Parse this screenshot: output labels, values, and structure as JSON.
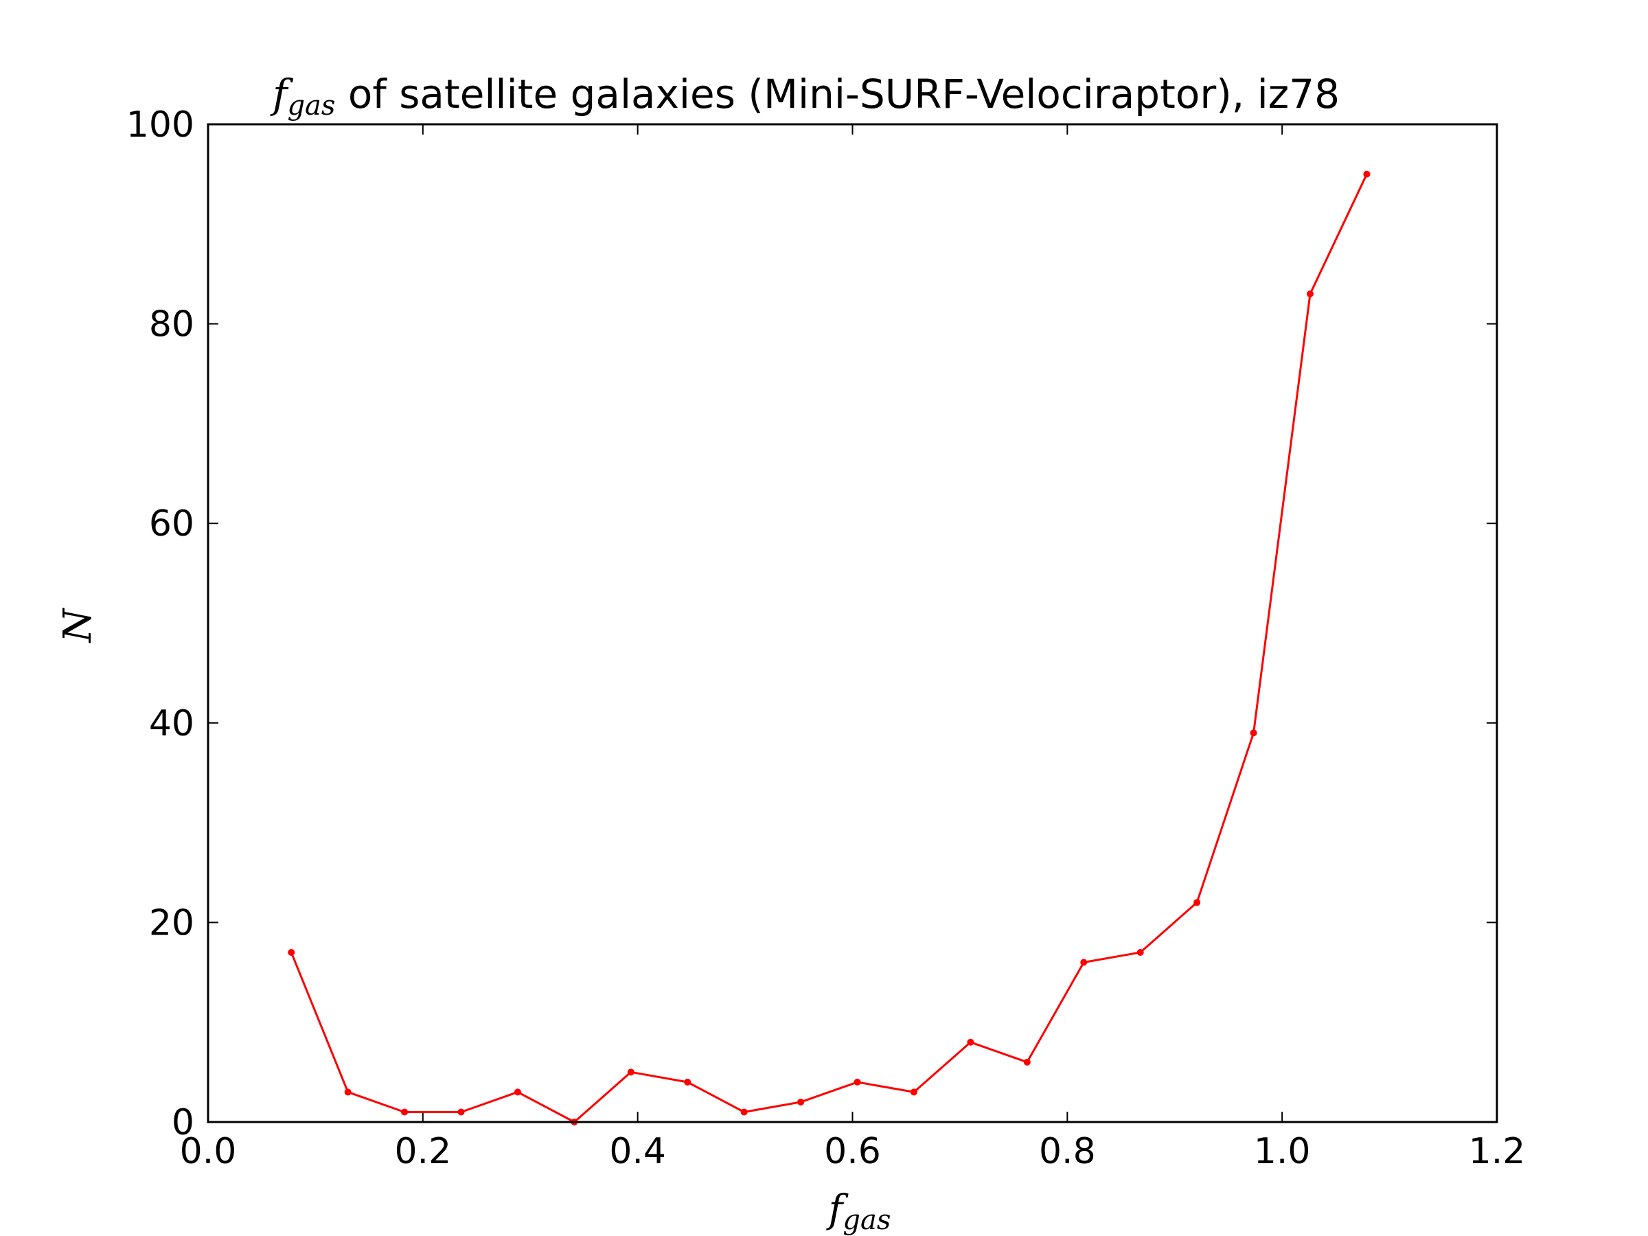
{
  "chart_data": {
    "type": "line",
    "title": {
      "symbol": "f",
      "symbol_sub": "gas",
      "text": " of satellite galaxies (Mini-SURF-Velociraptor), iz78"
    },
    "xlabel": {
      "symbol": "f",
      "symbol_sub": "gas"
    },
    "ylabel": "N",
    "xlim": [
      0.0,
      1.2
    ],
    "ylim": [
      0,
      100
    ],
    "xticks": [
      "0.0",
      "0.2",
      "0.4",
      "0.6",
      "0.8",
      "1.0",
      "1.2"
    ],
    "yticks": [
      "0",
      "20",
      "40",
      "60",
      "80",
      "100"
    ],
    "grid": false,
    "series": [
      {
        "color": "#ff0000",
        "marker": "dot",
        "x": [
          0.0775,
          0.1302,
          0.1829,
          0.2356,
          0.2883,
          0.341,
          0.3937,
          0.4464,
          0.4991,
          0.5518,
          0.6045,
          0.6572,
          0.7099,
          0.7626,
          0.8153,
          0.868,
          0.9207,
          0.9734,
          1.0261,
          1.0788
        ],
        "y": [
          17,
          3,
          1,
          1,
          3,
          0,
          5,
          4,
          1,
          2,
          4,
          3,
          8,
          6,
          16,
          17,
          22,
          39,
          83,
          95
        ]
      }
    ]
  }
}
